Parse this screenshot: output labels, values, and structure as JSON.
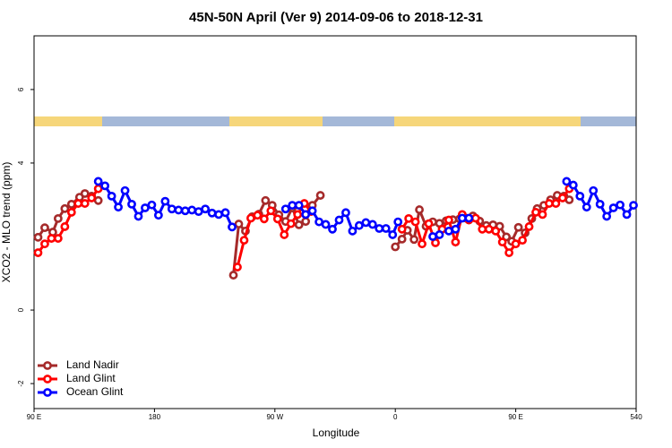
{
  "chart_data": {
    "type": "line",
    "title": "45N-50N April (Ver 9)   2014-09-06 to 2018-12-31",
    "x_label": "Longitude",
    "y_label": "XCO2 - MLO trend (ppm)",
    "xlim": [
      90,
      540
    ],
    "xticks": [
      {
        "value": 90,
        "label": "90 E"
      },
      180,
      {
        "value": 270,
        "label": "90 W"
      },
      {
        "value": 360,
        "label": "0"
      },
      {
        "value": 450,
        "label": "90 E"
      },
      540
    ],
    "ylim": [
      -2.68,
      7.46
    ],
    "yticks": [
      -2,
      0,
      4,
      6
    ],
    "legend": "bottom-left",
    "series": [
      {
        "name": "Land Nadir",
        "color": "#a52a2a",
        "x": [
          93,
          98,
          104,
          108,
          113,
          118,
          124,
          128,
          133,
          138,
          null,
          239,
          243,
          248,
          253,
          258,
          263,
          268,
          273,
          278,
          283,
          288,
          293,
          298,
          304,
          null,
          360,
          365,
          369,
          374,
          378,
          383,
          388,
          393,
          398,
          403,
          408,
          413,
          418,
          423,
          428,
          433,
          438,
          443,
          447,
          452,
          457,
          462,
          466,
          471,
          476,
          481,
          486,
          490
        ],
        "values": [
          1.98,
          2.24,
          2.12,
          2.49,
          2.76,
          2.88,
          3.07,
          3.17,
          3.1,
          2.98,
          null,
          0.95,
          2.34,
          2.15,
          2.54,
          2.61,
          2.98,
          2.85,
          2.59,
          2.41,
          2.78,
          2.32,
          2.41,
          2.85,
          3.12,
          null,
          1.72,
          1.93,
          2.17,
          1.92,
          2.73,
          2.28,
          2.4,
          2.36,
          2.43,
          2.46,
          2.48,
          2.5,
          2.56,
          2.42,
          2.3,
          2.32,
          2.28,
          1.99,
          1.87,
          2.25,
          2.1,
          2.49,
          2.76,
          2.85,
          3.0,
          3.12,
          3.1,
          3.0
        ]
      },
      {
        "name": "Land Glint",
        "color": "#ff0000",
        "x": [
          93,
          98,
          103,
          108,
          113,
          118,
          123,
          128,
          133,
          138,
          null,
          242,
          247,
          252,
          257,
          262,
          267,
          272,
          277,
          282,
          287,
          292,
          297,
          null,
          365,
          370,
          375,
          380,
          385,
          390,
          395,
          400,
          405,
          410,
          415,
          420,
          425,
          430,
          435,
          440,
          445,
          450,
          455,
          460,
          465,
          470,
          475,
          480,
          485,
          490
        ],
        "values": [
          1.56,
          1.8,
          1.95,
          1.95,
          2.27,
          2.66,
          2.9,
          2.9,
          3.05,
          3.3,
          null,
          1.17,
          1.9,
          2.5,
          2.58,
          2.48,
          2.7,
          2.48,
          2.05,
          2.35,
          2.6,
          2.9,
          2.68,
          null,
          2.2,
          2.49,
          2.4,
          1.8,
          2.35,
          1.83,
          2.2,
          2.45,
          1.85,
          2.6,
          2.45,
          2.5,
          2.2,
          2.2,
          2.15,
          1.85,
          1.56,
          1.8,
          1.9,
          2.27,
          2.66,
          2.6,
          2.9,
          2.9,
          3.05,
          3.3
        ]
      },
      {
        "name": "Ocean Glint",
        "color": "#0000ff",
        "x": [
          138,
          143,
          148,
          153,
          158,
          163,
          168,
          173,
          178,
          183,
          188,
          193,
          198,
          203,
          208,
          213,
          218,
          223,
          228,
          233,
          238,
          null,
          278,
          283,
          288,
          293,
          298,
          303,
          308,
          313,
          318,
          323,
          328,
          333,
          338,
          343,
          348,
          353,
          358,
          362,
          null,
          388,
          393,
          null,
          400,
          405,
          410,
          415,
          null,
          488,
          493,
          498,
          503,
          508,
          513,
          518,
          523,
          528,
          533,
          538
        ],
        "values": [
          3.5,
          3.38,
          3.1,
          2.8,
          3.25,
          2.88,
          2.55,
          2.78,
          2.86,
          2.58,
          2.96,
          2.75,
          2.72,
          2.7,
          2.72,
          2.68,
          2.75,
          2.64,
          2.6,
          2.65,
          2.26,
          null,
          2.75,
          2.85,
          2.85,
          2.6,
          2.7,
          2.4,
          2.33,
          2.2,
          2.45,
          2.65,
          2.15,
          2.3,
          2.38,
          2.33,
          2.22,
          2.22,
          2.05,
          2.4,
          null,
          2.0,
          2.05,
          null,
          2.15,
          2.2,
          2.5,
          2.5,
          null,
          3.5,
          3.4,
          3.1,
          2.8,
          3.25,
          2.88,
          2.55,
          2.78,
          2.86,
          2.6,
          2.85
        ]
      }
    ]
  }
}
